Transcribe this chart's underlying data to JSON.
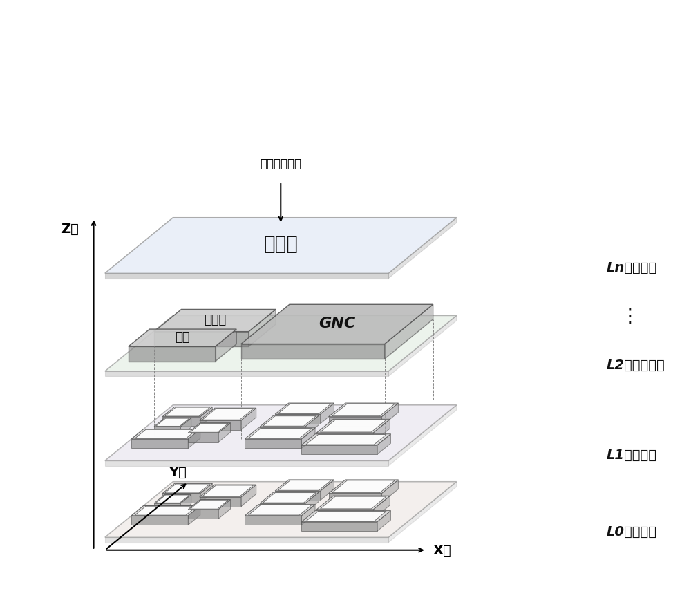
{
  "title": "",
  "bg_color": "#ffffff",
  "layer_labels": [
    "Ln：系统层",
    "L2：分系统层",
    "L1：设备层",
    "L0：接点层"
  ],
  "dots_label": "⋮",
  "z_label": "Z轴",
  "x_label": "X轴",
  "y_label": "Y轴",
  "screen_label": "正对屏幕方向",
  "text_ln": "航天器",
  "text_gongpeidianyuce": "供配电",
  "text_cekong": "测控",
  "text_gnc": "GNC",
  "plane_fill": "#e8f0e8",
  "plane_edge": "#888888",
  "plane_fill_ln": "#f0f0f8",
  "sub_fill": "#c8c8c8",
  "sub_edge": "#555555",
  "white_fill": "#ffffff"
}
